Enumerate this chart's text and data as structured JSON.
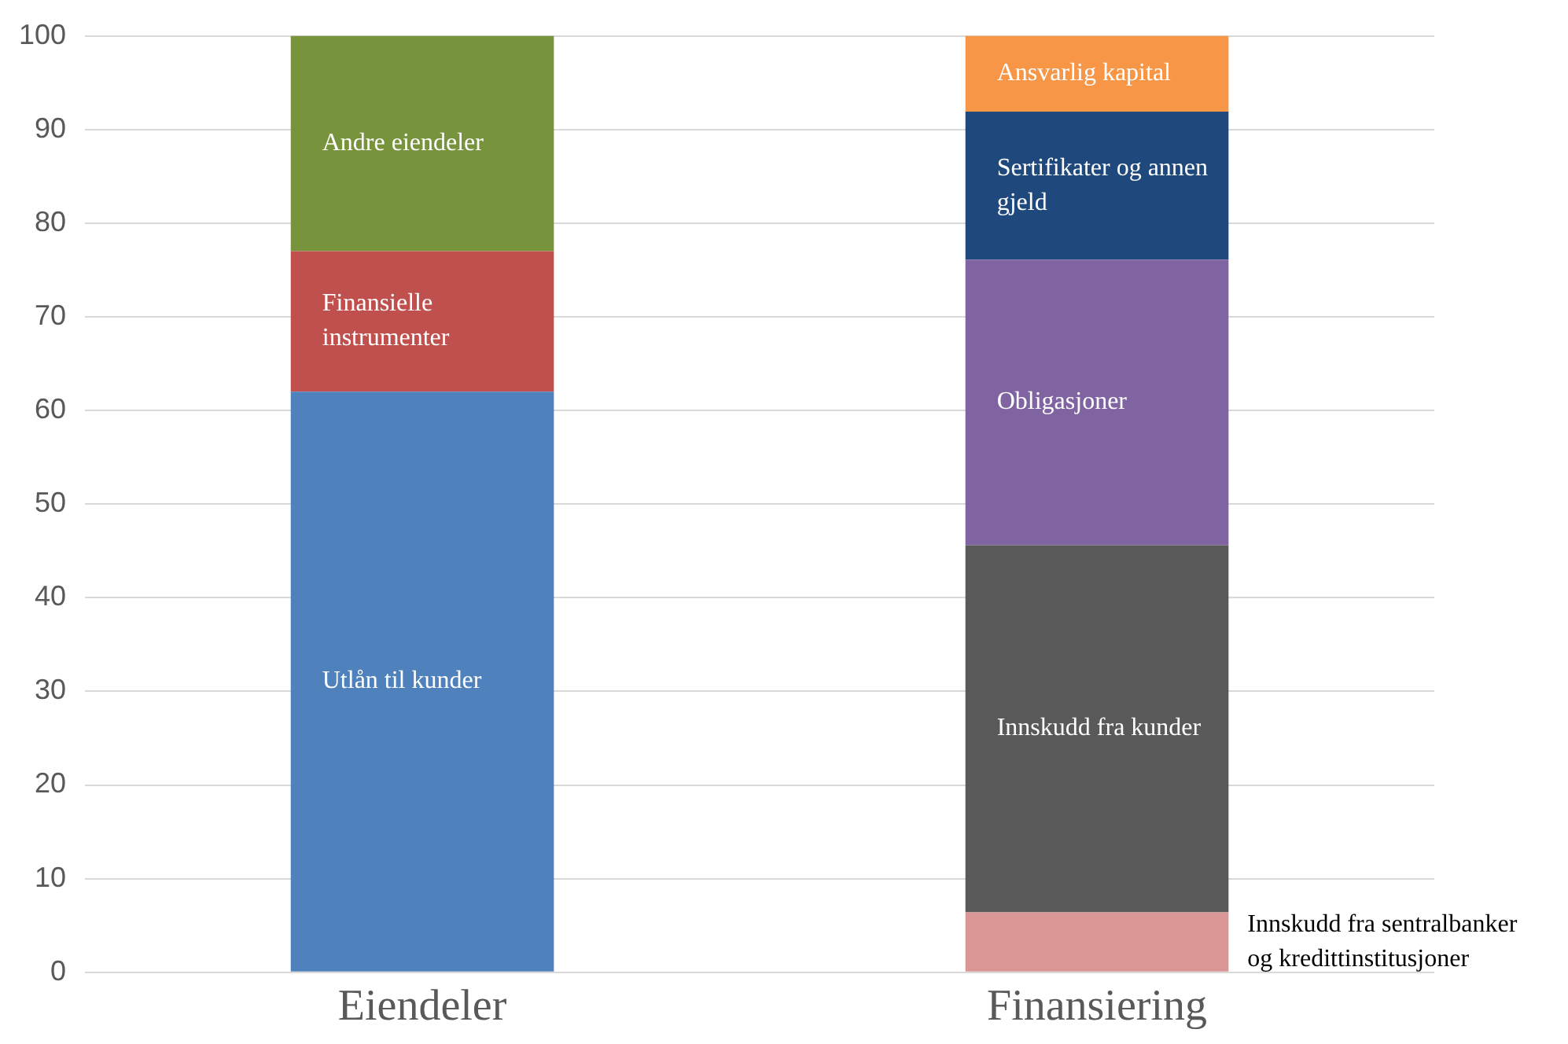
{
  "chart_data": {
    "type": "bar",
    "stacked": true,
    "categories": [
      "Eiendeler",
      "Finansiering"
    ],
    "series": [
      {
        "name": "Utlån til kunder",
        "color": "#4f81bd",
        "values": [
          62,
          null
        ]
      },
      {
        "name": "Finansielle instrumenter",
        "color": "#c0504d",
        "values": [
          15,
          null
        ]
      },
      {
        "name": "Andre eiendeler",
        "color": "#77933c",
        "values": [
          23,
          null
        ]
      },
      {
        "name": "Innskudd fra sentralbanker og kredittinstitusjoner",
        "color": "#d99694",
        "values": [
          null,
          6.4
        ]
      },
      {
        "name": "Innskudd fra kunder",
        "color": "#595959",
        "values": [
          null,
          39.2
        ]
      },
      {
        "name": "Obligasjoner",
        "color": "#8064a2",
        "values": [
          null,
          30.5
        ]
      },
      {
        "name": "Sertifikater og annen gjeld",
        "color": "#1f497d",
        "values": [
          null,
          15.8
        ]
      },
      {
        "name": "Ansvarlig kapital",
        "color": "#f79646",
        "values": [
          null,
          8.1
        ]
      }
    ],
    "ylim": [
      0,
      100
    ],
    "yticks": [
      0,
      10,
      20,
      30,
      40,
      50,
      60,
      70,
      80,
      90,
      100
    ],
    "grid": "y",
    "legend": false
  }
}
